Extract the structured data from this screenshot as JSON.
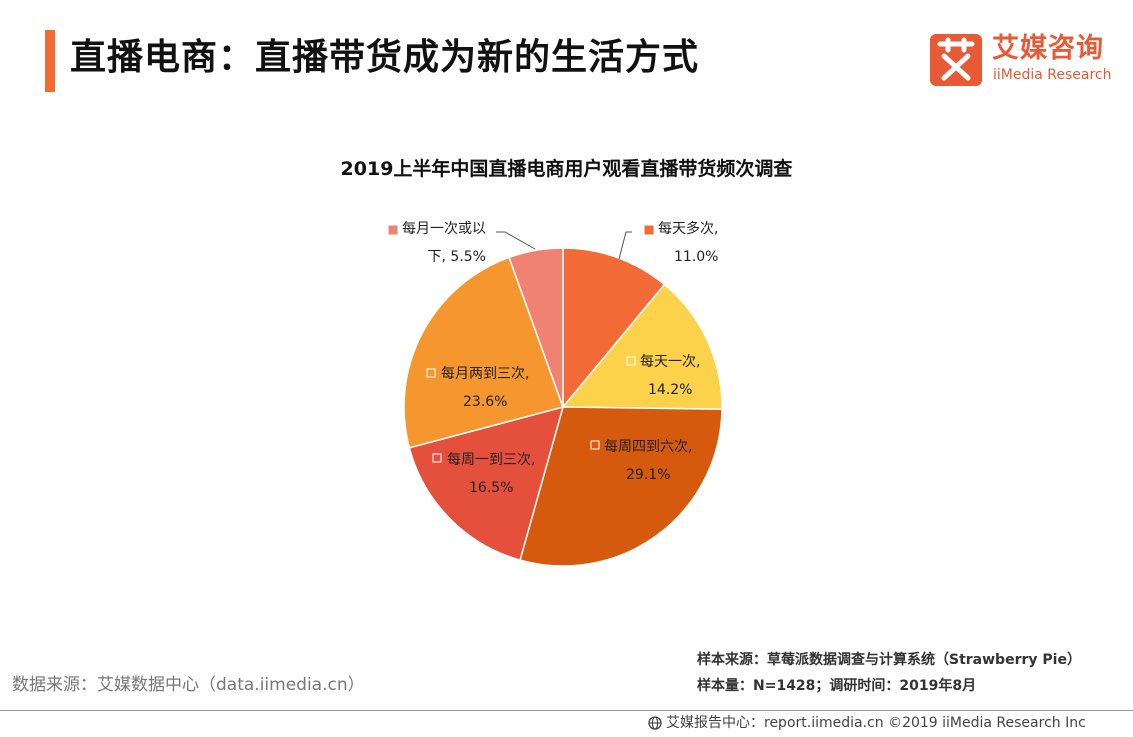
{
  "header": {
    "title": "直播电商：直播带货成为新的生活方式",
    "logo_cn": "艾媒咨询",
    "logo_en": "iiMedia Research",
    "logo_mark_char": "艾",
    "accent_color": "#f06a35"
  },
  "chart_data": {
    "type": "pie",
    "title": "2019上半年中国直播电商用户观看直播带货频次调查",
    "slices": [
      {
        "line1": "每天多次,",
        "line2": "11.0%",
        "label": "每天多次",
        "value": 11.0,
        "color": "#f26a35"
      },
      {
        "line1": "每天一次,",
        "line2": "14.2%",
        "label": "每天一次",
        "value": 14.2,
        "color": "#fcd24a"
      },
      {
        "line1": "每周四到六次,",
        "line2": "29.1%",
        "label": "每周四到六次",
        "value": 29.1,
        "color": "#d55a0d"
      },
      {
        "line1": "每周一到三次,",
        "line2": "16.5%",
        "label": "每周一到三次",
        "value": 16.5,
        "color": "#e5503c"
      },
      {
        "line1": "每月两到三次,",
        "line2": "23.6%",
        "label": "每月两到三次",
        "value": 23.6,
        "color": "#f5972e"
      },
      {
        "line1": "每月一次或以",
        "line2": "下, 5.5%",
        "label": "每月一次或以下",
        "value": 5.5,
        "color": "#ef8270"
      }
    ],
    "start_angle": "12 o'clock",
    "direction": "clockwise"
  },
  "sources": {
    "data_source": "数据来源：艾媒数据中心（data.iimedia.cn）",
    "sample_source": "样本来源：草莓派数据调查与计算系统（Strawberry Pie）",
    "sample_info": "样本量：N=1428；调研时间：2019年8月"
  },
  "footer": {
    "text": "艾媒报告中心：report.iimedia.cn ©2019 iiMedia Research Inc"
  }
}
